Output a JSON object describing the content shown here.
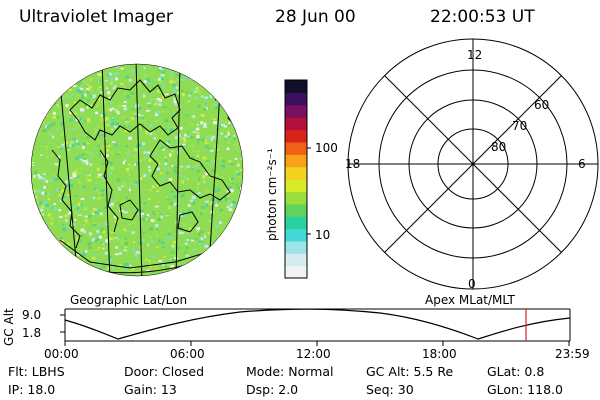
{
  "header": {
    "instrument": "Ultraviolet Imager",
    "date": "28 Jun 00",
    "time": "22:00:53 UT"
  },
  "colorbar": {
    "unit_label": "photon cm⁻²s⁻¹",
    "ticks": [
      "100",
      "10"
    ],
    "colors": [
      "#f2f2f2",
      "#d6ecf0",
      "#9ee3ea",
      "#40d8d8",
      "#2bd0a0",
      "#62d35a",
      "#9ede3c",
      "#d7ec28",
      "#f4d21f",
      "#f9a11a",
      "#f06016",
      "#d9221a",
      "#b0103a",
      "#7a1060",
      "#3a1060",
      "#10102a"
    ]
  },
  "geo_panel": {
    "caption": "Geographic Lat/Lon"
  },
  "polar_panel": {
    "caption": "Apex MLat/MLT",
    "mlt_labels": {
      "top": "12",
      "left": "18",
      "right": "6",
      "bottom": "0"
    },
    "lat_labels": [
      "60",
      "70",
      "80"
    ]
  },
  "altitude_strip": {
    "axis_label": "GC Alt",
    "y_ticks": [
      "9.0",
      "1.8"
    ],
    "time_ticks": [
      "00:00",
      "06:00",
      "12:00",
      "18:00",
      "23:59"
    ],
    "marker_color": "#e02020"
  },
  "info": {
    "filter": "Flt: LBHS",
    "door": "Door: Closed",
    "mode": "Mode: Normal",
    "gc_alt": "GC Alt: 5.5 Re",
    "glat": "GLat:   0.8",
    "ip": "IP: 18.0",
    "gain": "Gain: 13",
    "dsp": "Dsp:     2.0",
    "seq": "Seq: 30",
    "glon": "GLon: 118.0"
  }
}
